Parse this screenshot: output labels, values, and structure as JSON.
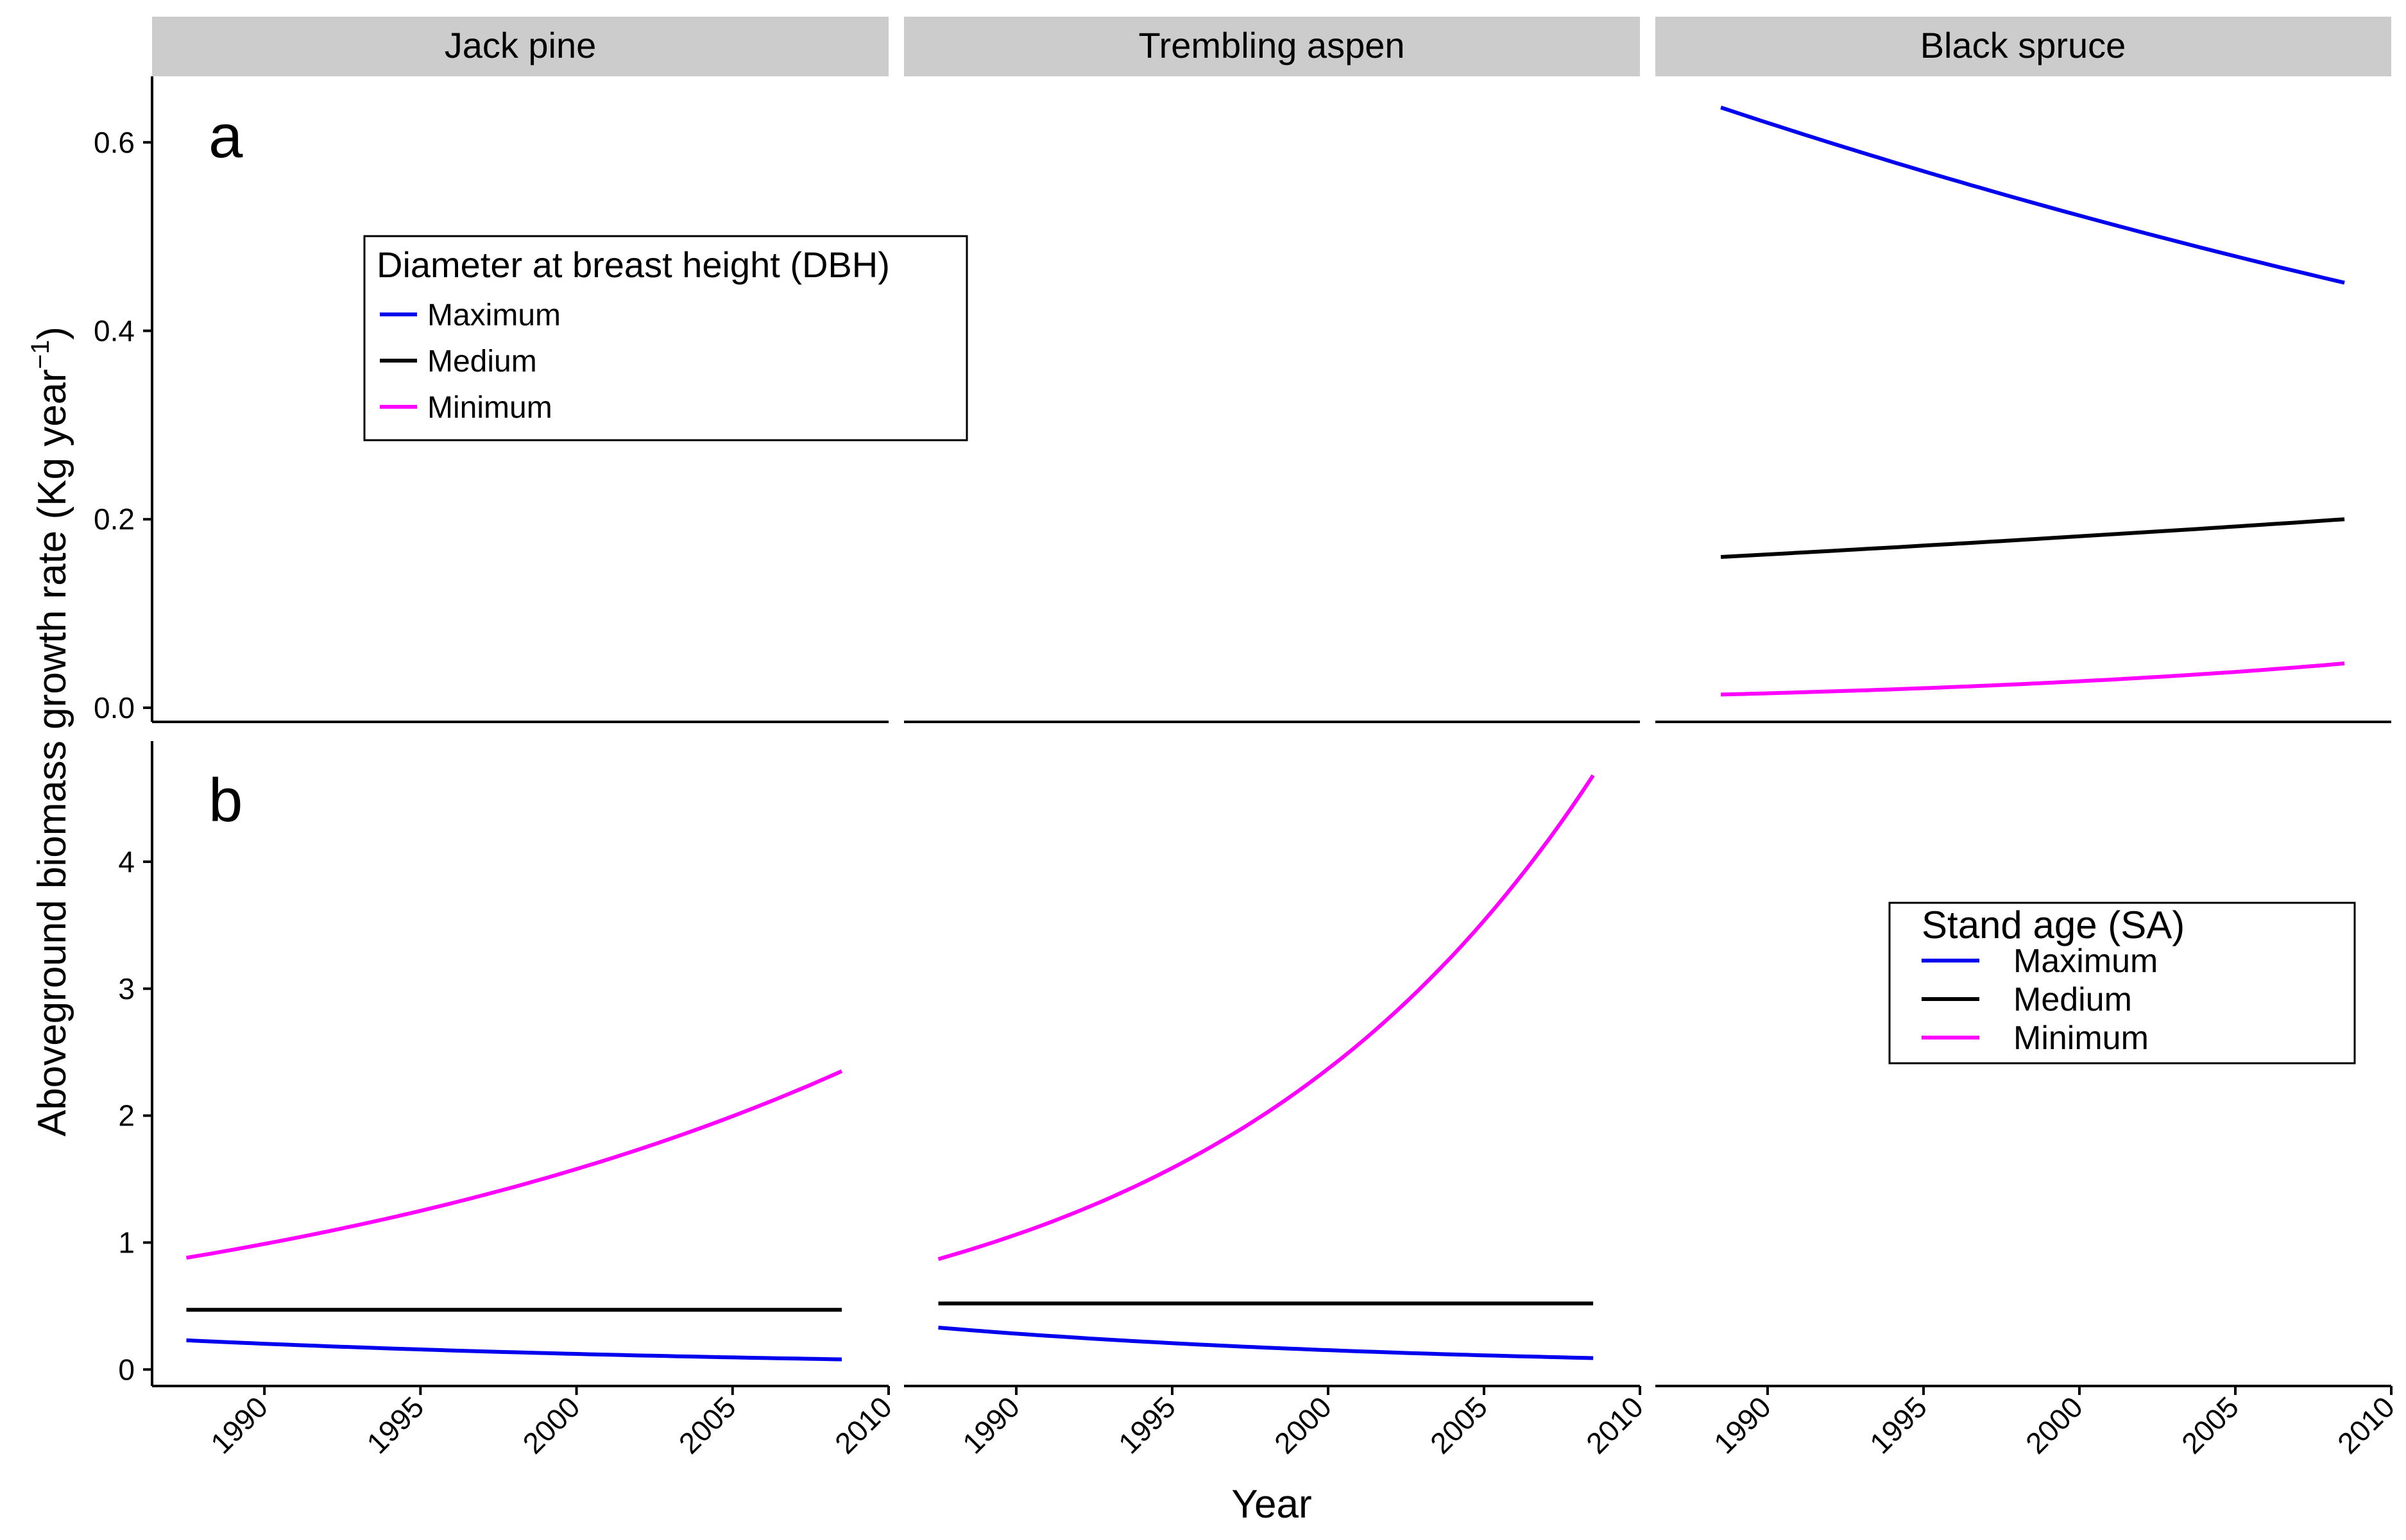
{
  "figure": {
    "ylabel": "Aboveground biomass growth rate (Kg year",
    "ylabel_sup": "−1",
    "ylabel_tail": ")",
    "xlabel": "Year",
    "facets": [
      "Jack pine",
      "Trembling aspen",
      "Black spruce"
    ],
    "row_labels": [
      "a",
      "b"
    ],
    "x_ticks": [
      1990,
      1995,
      2000,
      2005,
      2010
    ],
    "xlim": [
      1986.4,
      2010
    ]
  },
  "legends": {
    "dbh": {
      "title": "Diameter at breast height (DBH)",
      "items": [
        "Maximum",
        "Medium",
        "Minimum"
      ]
    },
    "sa": {
      "title": "Stand age (SA)",
      "items": [
        "Maximum",
        "Medium",
        "Minimum"
      ]
    }
  },
  "colors": {
    "Maximum": "#0000ee",
    "Medium": "#000000",
    "Minimum": "#ff00ff",
    "strip": "#cccccc"
  },
  "chart_data": [
    {
      "type": "line",
      "panel": "a",
      "facet": "Black spruce",
      "x": [
        1988.5,
        2008.5
      ],
      "ylim": [
        -0.015,
        0.67
      ],
      "y_ticks": [
        0.0,
        0.2,
        0.4,
        0.6
      ],
      "series": [
        {
          "name": "Maximum",
          "values": [
            0.637,
            0.451
          ],
          "shape": "exp"
        },
        {
          "name": "Medium",
          "values": [
            0.16,
            0.2
          ],
          "shape": "exp"
        },
        {
          "name": "Minimum",
          "values": [
            0.014,
            0.047
          ],
          "shape": "exp"
        }
      ]
    },
    {
      "type": "line",
      "panel": "b",
      "facet": "Jack pine",
      "x": [
        1987.5,
        2008.5
      ],
      "ylim": [
        -0.13,
        4.95
      ],
      "y_ticks": [
        0,
        1,
        2,
        3,
        4
      ],
      "series": [
        {
          "name": "Maximum",
          "values": [
            0.23,
            0.08
          ],
          "shape": "exp"
        },
        {
          "name": "Medium",
          "values": [
            0.47,
            0.47
          ],
          "shape": "exp"
        },
        {
          "name": "Minimum",
          "values": [
            0.88,
            2.35
          ],
          "shape": "exp"
        }
      ]
    },
    {
      "type": "line",
      "panel": "b",
      "facet": "Trembling aspen",
      "x": [
        1987.5,
        2008.5
      ],
      "ylim": [
        -0.13,
        4.95
      ],
      "y_ticks": [
        0,
        1,
        2,
        3,
        4
      ],
      "series": [
        {
          "name": "Maximum",
          "values": [
            0.33,
            0.09
          ],
          "shape": "exp"
        },
        {
          "name": "Medium",
          "values": [
            0.52,
            0.52
          ],
          "shape": "exp"
        },
        {
          "name": "Minimum",
          "values": [
            0.87,
            4.68
          ],
          "shape": "exp"
        }
      ]
    }
  ]
}
